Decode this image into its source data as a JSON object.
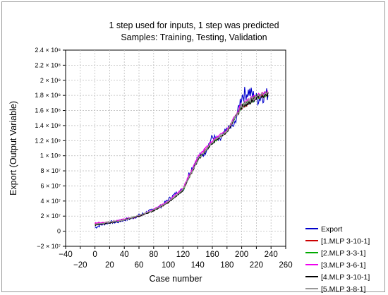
{
  "chart_data": {
    "type": "line",
    "title": "1 step used for inputs, 1 step was predicted",
    "subtitle": "Samples: Training, Testing, Validation",
    "xlabel": "Case number",
    "ylabel": "Export (Output Variable)",
    "xlim": [
      -40,
      260
    ],
    "ylim": [
      -20000000,
      240000000
    ],
    "x_ticks_upper": [
      "−40",
      "0",
      "40",
      "80",
      "120",
      "160",
      "200",
      "240"
    ],
    "x_ticks_lower": [
      "−20",
      "20",
      "60",
      "100",
      "140",
      "180",
      "220",
      "260"
    ],
    "y_ticks": [
      "−2 × 10⁷",
      "0",
      "2 × 10⁷",
      "4 × 10⁷",
      "6 × 10⁷",
      "8 × 10⁷",
      "1 × 10⁸",
      "1.2 × 10⁸",
      "1.4 × 10⁸",
      "1.6 × 10⁸",
      "1.8 × 10⁸",
      "2 × 10⁸",
      "2.2 × 10⁸",
      "2.4 × 10⁸"
    ],
    "grid": true,
    "legend_position": "bottom-right",
    "series": [
      {
        "name": "Export",
        "color": "#0000cc",
        "x": [
          0,
          10,
          20,
          30,
          40,
          50,
          60,
          70,
          80,
          90,
          100,
          110,
          120,
          130,
          140,
          150,
          160,
          170,
          180,
          190,
          200,
          210,
          220,
          230,
          236
        ],
        "y": [
          5000000,
          9000000,
          12000000,
          12000000,
          15000000,
          17000000,
          21000000,
          25000000,
          29000000,
          33000000,
          42000000,
          50000000,
          56000000,
          80000000,
          97000000,
          105000000,
          125000000,
          120000000,
          135000000,
          140000000,
          180000000,
          185000000,
          175000000,
          180000000,
          182000000
        ]
      },
      {
        "name": "[1.MLP 3-10-1]",
        "color": "#cc0000",
        "x": [
          0,
          20,
          40,
          60,
          80,
          100,
          120,
          140,
          160,
          180,
          200,
          220,
          236
        ],
        "y": [
          10000000,
          12000000,
          15000000,
          20000000,
          28000000,
          38000000,
          55000000,
          95000000,
          118000000,
          132000000,
          165000000,
          178000000,
          183000000
        ]
      },
      {
        "name": "[2.MLP 3-3-1]",
        "color": "#00aa00",
        "x": [
          0,
          20,
          40,
          60,
          80,
          100,
          120,
          140,
          160,
          180,
          200,
          220,
          236
        ],
        "y": [
          9000000,
          12000000,
          15000000,
          21000000,
          28000000,
          39000000,
          54000000,
          96000000,
          117000000,
          133000000,
          166000000,
          177000000,
          182000000
        ]
      },
      {
        "name": "[3.MLP 3-6-1]",
        "color": "#ee00ee",
        "x": [
          0,
          20,
          40,
          60,
          80,
          100,
          120,
          140,
          160,
          180,
          200,
          220,
          236
        ],
        "y": [
          11000000,
          12000000,
          16000000,
          20000000,
          29000000,
          40000000,
          57000000,
          98000000,
          120000000,
          134000000,
          168000000,
          179000000,
          184000000
        ]
      },
      {
        "name": "[4.MLP 3-10-1]",
        "color": "#000000",
        "x": [
          0,
          20,
          40,
          60,
          80,
          100,
          120,
          140,
          160,
          180,
          200,
          220,
          236
        ],
        "y": [
          8000000,
          11000000,
          15000000,
          20000000,
          27000000,
          38000000,
          54000000,
          94000000,
          117000000,
          132000000,
          165000000,
          177000000,
          182000000
        ]
      },
      {
        "name": "[5.MLP 3-8-1]",
        "color": "#999999",
        "x": [
          0,
          20,
          40,
          60,
          80,
          100,
          120,
          140,
          160,
          180,
          200,
          220,
          236
        ],
        "y": [
          9000000,
          12000000,
          15000000,
          21000000,
          28000000,
          39000000,
          55000000,
          95000000,
          118000000,
          133000000,
          166000000,
          178000000,
          182000000
        ]
      }
    ]
  }
}
